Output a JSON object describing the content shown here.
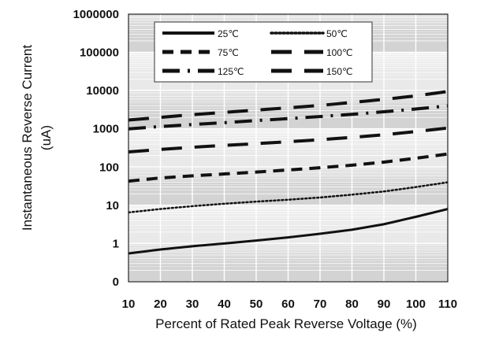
{
  "chart_data": {
    "type": "line",
    "title": "",
    "xlabel": "Percent of  Rated Peak Reverse Voltage (%)",
    "ylabel": "Instantaneous Reverse Current (uA)",
    "ylabel_line1": "Instantaneous Reverse Current",
    "ylabel_line2": "(uA)",
    "y_scale": "log",
    "xlim": [
      10,
      110
    ],
    "ylim": [
      0.1,
      1000000
    ],
    "x_ticks": [
      10,
      20,
      30,
      40,
      50,
      60,
      70,
      80,
      90,
      100,
      110
    ],
    "x_tick_labels": [
      "10",
      "20",
      "30",
      "40",
      "50",
      "60",
      "70",
      "80",
      "90",
      "100",
      "110"
    ],
    "y_ticks": [
      0.1,
      1,
      10,
      100,
      1000,
      10000,
      100000,
      1000000
    ],
    "y_tick_labels": [
      "0",
      "1",
      "10",
      "100",
      "1000",
      "10000",
      "100000",
      "1000000"
    ],
    "grid": true,
    "legend_position": "top",
    "x": [
      10,
      20,
      30,
      40,
      50,
      60,
      70,
      80,
      90,
      100,
      110
    ],
    "series": [
      {
        "name": "25℃",
        "values": [
          0.55,
          0.7,
          0.85,
          1.0,
          1.2,
          1.45,
          1.8,
          2.3,
          3.2,
          5.0,
          8.0
        ],
        "dash": "solid",
        "width": 3
      },
      {
        "name": "50℃",
        "values": [
          6.5,
          8.0,
          9.5,
          11.0,
          12.5,
          14.0,
          16.0,
          19.0,
          23.0,
          30.0,
          40.0
        ],
        "dash": "dotted",
        "width": 2.5
      },
      {
        "name": "75℃",
        "values": [
          43,
          52,
          59,
          66,
          74,
          84,
          96,
          112,
          135,
          170,
          220
        ],
        "dash": "dashed",
        "width": 4
      },
      {
        "name": "100℃",
        "values": [
          250,
          290,
          330,
          370,
          410,
          460,
          520,
          600,
          700,
          850,
          1050
        ],
        "dash": "longdash",
        "width": 4
      },
      {
        "name": "125℃",
        "values": [
          1000,
          1150,
          1300,
          1450,
          1650,
          1850,
          2100,
          2400,
          2800,
          3300,
          4000
        ],
        "dash": "dashdot",
        "width": 4
      },
      {
        "name": "150℃",
        "values": [
          1700,
          2000,
          2350,
          2700,
          3100,
          3550,
          4100,
          4900,
          5900,
          7300,
          9500
        ],
        "dash": "longdash",
        "width": 4
      }
    ]
  }
}
